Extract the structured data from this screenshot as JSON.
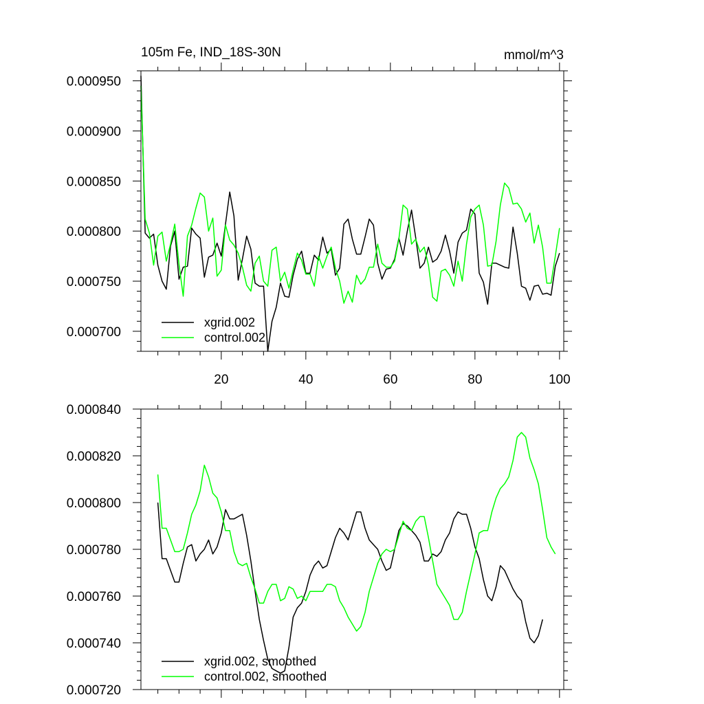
{
  "chart_data": [
    {
      "type": "line",
      "title": "105m Fe, IND_18S-30N",
      "units": "mmol/m^3",
      "xlabel": "",
      "ylabel": "",
      "xlim": [
        1,
        101
      ],
      "ylim": [
        0.00068,
        0.00096
      ],
      "xticks": [
        20,
        40,
        60,
        80,
        100
      ],
      "xtick_labels": [
        "20",
        "40",
        "60",
        "80",
        "100"
      ],
      "yticks": [
        0.0007,
        0.00075,
        0.0008,
        0.00085,
        0.0009,
        0.00095
      ],
      "ytick_labels": [
        "0.000700",
        "0.000750",
        "0.000800",
        "0.000850",
        "0.000900",
        "0.000950"
      ],
      "legend_position": "bottom-left",
      "series": [
        {
          "name": "xgrid.002",
          "color": "#000000",
          "x_start": 1,
          "values": [
            0.000955,
            0.000798,
            0.000793,
            0.000797,
            0.000766,
            0.00075,
            0.000742,
            0.000785,
            0.0008,
            0.000752,
            0.000764,
            0.000765,
            0.000803,
            0.000797,
            0.000793,
            0.000754,
            0.000774,
            0.000776,
            0.000788,
            0.000775,
            0.000807,
            0.000839,
            0.000815,
            0.000751,
            0.000772,
            0.000795,
            0.000782,
            0.000748,
            0.000745,
            0.000745,
            0.00068,
            0.00071,
            0.000724,
            0.000748,
            0.000735,
            0.000734,
            0.000756,
            0.000772,
            0.00078,
            0.000758,
            0.000758,
            0.000776,
            0.000771,
            0.000794,
            0.000778,
            0.000782,
            0.000756,
            0.000763,
            0.000807,
            0.000812,
            0.000792,
            0.000777,
            0.000777,
            0.000794,
            0.000812,
            0.000806,
            0.000768,
            0.000752,
            0.000762,
            0.000763,
            0.000772,
            0.000793,
            0.000776,
            0.0008,
            0.000821,
            0.000793,
            0.000763,
            0.000768,
            0.000784,
            0.000769,
            0.000772,
            0.00078,
            0.000796,
            0.00078,
            0.000758,
            0.000789,
            0.000798,
            0.000801,
            0.000822,
            0.000817,
            0.000758,
            0.000749,
            0.000727,
            0.000768,
            0.000768,
            0.000766,
            0.000764,
            0.000763,
            0.000804,
            0.000778,
            0.000745,
            0.000743,
            0.000731,
            0.000745,
            0.000746,
            0.000737,
            0.000738,
            0.000736,
            0.000765,
            0.000778
          ]
        },
        {
          "name": "control.002",
          "color": "#00ff00",
          "x_start": 1,
          "values": [
            0.000945,
            0.000812,
            0.000798,
            0.000766,
            0.000795,
            0.000799,
            0.00077,
            0.000787,
            0.000807,
            0.000767,
            0.000735,
            0.000795,
            0.000806,
            0.000823,
            0.000838,
            0.000834,
            0.0008,
            0.000813,
            0.000755,
            0.000761,
            0.000806,
            0.000791,
            0.000786,
            0.000778,
            0.000764,
            0.000746,
            0.00074,
            0.000768,
            0.000775,
            0.00075,
            0.000745,
            0.000781,
            0.000784,
            0.00075,
            0.000759,
            0.000743,
            0.000761,
            0.000778,
            0.000771,
            0.000757,
            0.000757,
            0.000745,
            0.000775,
            0.000763,
            0.000775,
            0.000784,
            0.000763,
            0.00075,
            0.000728,
            0.00074,
            0.000729,
            0.000756,
            0.000747,
            0.000752,
            0.000764,
            0.000764,
            0.000787,
            0.000768,
            0.000764,
            0.000764,
            0.00077,
            0.000792,
            0.000826,
            0.000822,
            0.000787,
            0.000792,
            0.000779,
            0.000784,
            0.000766,
            0.000734,
            0.00073,
            0.00076,
            0.000762,
            0.000756,
            0.000745,
            0.00077,
            0.00075,
            0.000787,
            0.000814,
            0.000822,
            0.000826,
            0.000806,
            0.000765,
            0.000766,
            0.00079,
            0.000826,
            0.000848,
            0.000843,
            0.000827,
            0.000828,
            0.000822,
            0.000809,
            0.000818,
            0.000788,
            0.000806,
            0.000784,
            0.000748,
            0.000748,
            0.000775,
            0.000803
          ]
        }
      ]
    },
    {
      "type": "line",
      "title": "",
      "xlabel": "",
      "ylabel": "",
      "xlim": [
        1,
        101
      ],
      "ylim": [
        0.00072,
        0.00084
      ],
      "xticks": [
        20,
        40,
        60,
        80,
        100
      ],
      "yticks": [
        0.00072,
        0.00074,
        0.00076,
        0.00078,
        0.0008,
        0.00082,
        0.00084
      ],
      "ytick_labels": [
        "0.000720",
        "0.000740",
        "0.000760",
        "0.000780",
        "0.000800",
        "0.000820",
        "0.000840"
      ],
      "legend_position": "bottom-left",
      "series": [
        {
          "name": "xgrid.002, smoothed",
          "color": "#000000",
          "x_start": 5,
          "values": [
            0.0008,
            0.000776,
            0.000776,
            0.000771,
            0.000766,
            0.000766,
            0.000774,
            0.000781,
            0.000782,
            0.000775,
            0.000778,
            0.00078,
            0.000784,
            0.000778,
            0.000781,
            0.000787,
            0.000797,
            0.000793,
            0.000793,
            0.000794,
            0.000795,
            0.000786,
            0.000775,
            0.000762,
            0.00075,
            0.000741,
            0.000733,
            0.000729,
            0.000728,
            0.000727,
            0.000728,
            0.000738,
            0.000751,
            0.000755,
            0.000757,
            0.000762,
            0.000769,
            0.000773,
            0.000775,
            0.000772,
            0.000773,
            0.000779,
            0.000785,
            0.000789,
            0.000787,
            0.000784,
            0.00079,
            0.000796,
            0.000796,
            0.000789,
            0.000784,
            0.000782,
            0.00078,
            0.000775,
            0.000771,
            0.000772,
            0.00078,
            0.000788,
            0.000791,
            0.00079,
            0.000788,
            0.000786,
            0.000783,
            0.000775,
            0.000775,
            0.000778,
            0.000777,
            0.000779,
            0.000784,
            0.000787,
            0.000793,
            0.000796,
            0.000795,
            0.000795,
            0.000789,
            0.000781,
            0.000776,
            0.000767,
            0.00076,
            0.000758,
            0.000764,
            0.000773,
            0.000771,
            0.000767,
            0.000763,
            0.00076,
            0.000758,
            0.000749,
            0.000742,
            0.00074,
            0.000743,
            0.00075
          ]
        },
        {
          "name": "control.002, smoothed",
          "color": "#00ff00",
          "x_start": 5,
          "values": [
            0.000812,
            0.000789,
            0.000789,
            0.000784,
            0.000779,
            0.000779,
            0.00078,
            0.000787,
            0.000795,
            0.000799,
            0.000805,
            0.000816,
            0.000811,
            0.000804,
            0.000802,
            0.000796,
            0.000788,
            0.000788,
            0.000779,
            0.000774,
            0.000773,
            0.000774,
            0.000768,
            0.000763,
            0.000757,
            0.000757,
            0.000762,
            0.000765,
            0.000765,
            0.000758,
            0.000759,
            0.000764,
            0.000763,
            0.000759,
            0.00076,
            0.000758,
            0.000762,
            0.000762,
            0.000762,
            0.000762,
            0.000765,
            0.000765,
            0.000764,
            0.000758,
            0.000755,
            0.000751,
            0.000748,
            0.000745,
            0.000747,
            0.000753,
            0.000762,
            0.000768,
            0.000774,
            0.000778,
            0.00078,
            0.000779,
            0.00078,
            0.000786,
            0.000792,
            0.000789,
            0.000788,
            0.000792,
            0.000794,
            0.000794,
            0.000785,
            0.000775,
            0.000765,
            0.000762,
            0.000759,
            0.000756,
            0.00075,
            0.00075,
            0.000753,
            0.000762,
            0.00077,
            0.000778,
            0.000787,
            0.000788,
            0.000788,
            0.000796,
            0.000802,
            0.000806,
            0.000808,
            0.000811,
            0.000818,
            0.000828,
            0.00083,
            0.000828,
            0.000819,
            0.000814,
            0.000808,
            0.000797,
            0.000785,
            0.000781,
            0.000778
          ]
        }
      ]
    }
  ]
}
